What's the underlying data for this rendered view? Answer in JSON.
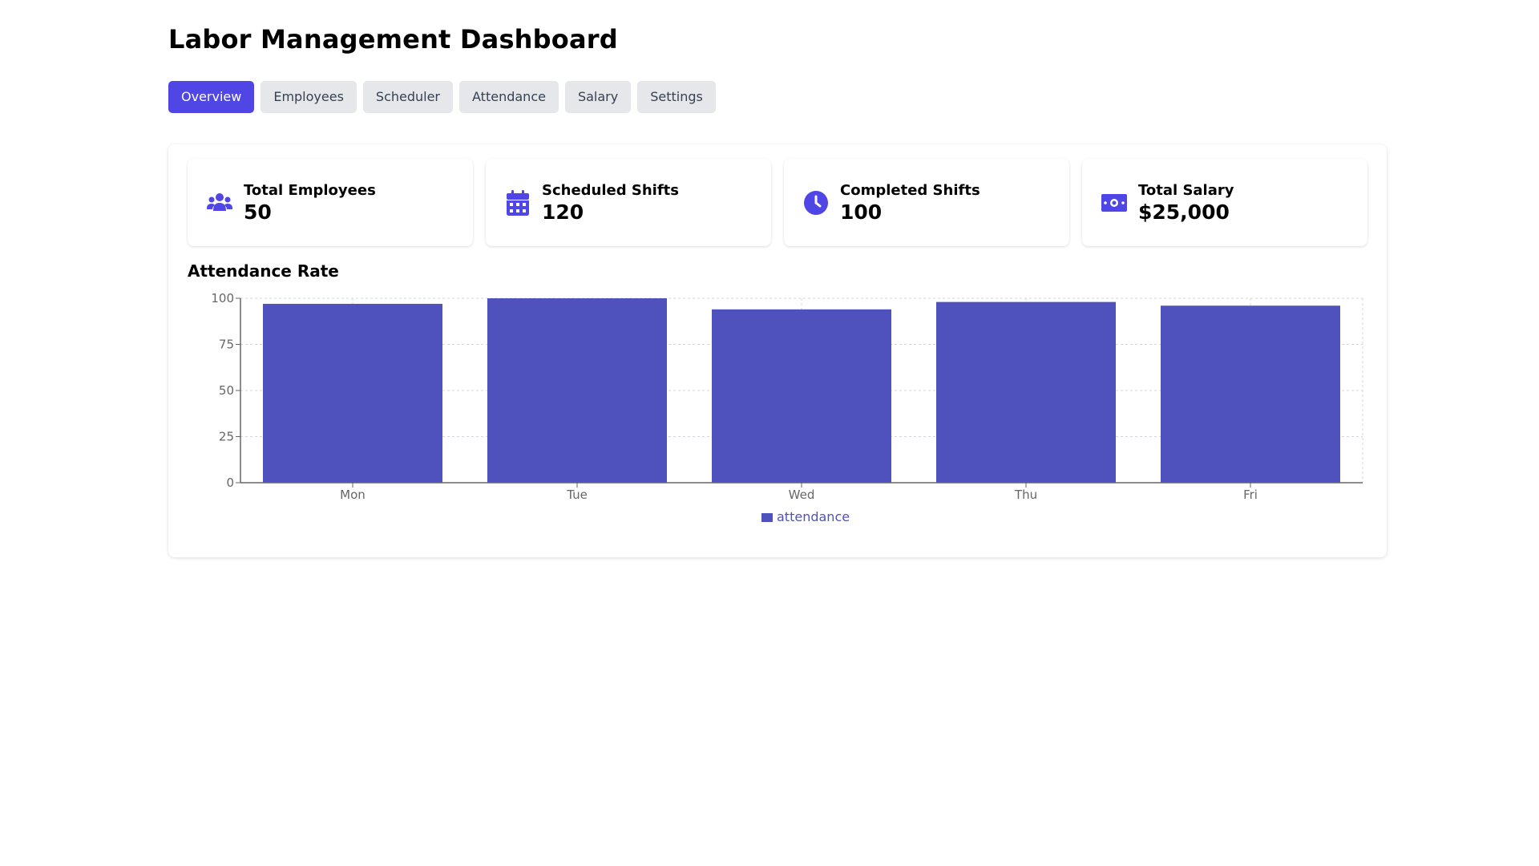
{
  "page": {
    "title": "Labor Management Dashboard"
  },
  "tabs": [
    {
      "label": "Overview",
      "active": true
    },
    {
      "label": "Employees",
      "active": false
    },
    {
      "label": "Scheduler",
      "active": false
    },
    {
      "label": "Attendance",
      "active": false
    },
    {
      "label": "Salary",
      "active": false
    },
    {
      "label": "Settings",
      "active": false
    }
  ],
  "stats": [
    {
      "label": "Total Employees",
      "value": "50",
      "icon": "users-icon"
    },
    {
      "label": "Scheduled Shifts",
      "value": "120",
      "icon": "calendar-icon"
    },
    {
      "label": "Completed Shifts",
      "value": "100",
      "icon": "clock-icon"
    },
    {
      "label": "Total Salary",
      "value": "$25,000",
      "icon": "money-bill-icon"
    }
  ],
  "colors": {
    "accent": "#4f46e5",
    "bar": "#4f52bd",
    "tab_inactive": "#e5e7eb"
  },
  "chart_section": {
    "title": "Attendance Rate"
  },
  "chart_data": {
    "type": "bar",
    "categories": [
      "Mon",
      "Tue",
      "Wed",
      "Thu",
      "Fri"
    ],
    "series": [
      {
        "name": "attendance",
        "values": [
          97,
          100,
          94,
          98,
          96
        ]
      }
    ],
    "ylim": [
      0,
      100
    ],
    "yticks": [
      0,
      25,
      50,
      75,
      100
    ],
    "grid": true,
    "legend": "bottom-center"
  }
}
